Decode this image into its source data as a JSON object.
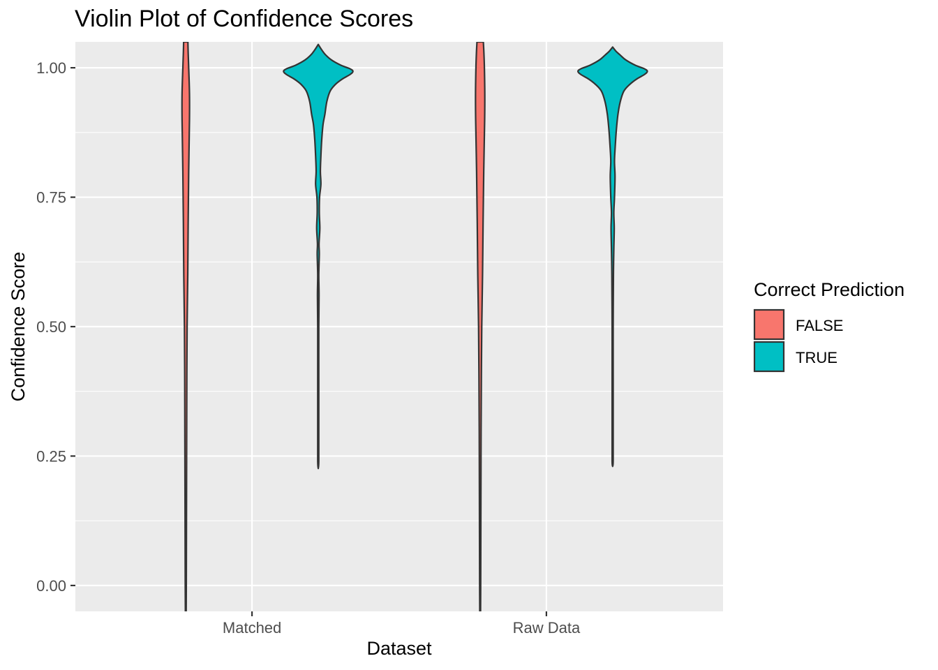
{
  "chart_data": {
    "type": "violin",
    "title": "Violin Plot of Confidence Scores",
    "xlabel": "Dataset",
    "ylabel": "Confidence Score",
    "categories": [
      "Matched",
      "Raw Data"
    ],
    "ylim": [
      -0.05,
      1.05
    ],
    "yticks": [
      0.0,
      0.25,
      0.5,
      0.75,
      1.0
    ],
    "ytick_labels": [
      "0.00",
      "0.25",
      "0.50",
      "0.75",
      "1.00"
    ],
    "grid": true,
    "legend": {
      "title": "Correct Prediction",
      "placement": "right",
      "entries": [
        {
          "label": "FALSE",
          "color": "#F8766D"
        },
        {
          "label": "TRUE",
          "color": "#00BFC4"
        }
      ]
    },
    "series": [
      {
        "name": "FALSE",
        "color": "#F8766D",
        "violins": [
          {
            "category": "Matched",
            "y_range": [
              -0.05,
              1.05
            ],
            "profile": [
              [
                -0.05,
                0.003
              ],
              [
                0.0,
                0.004
              ],
              [
                0.1,
                0.005
              ],
              [
                0.2,
                0.006
              ],
              [
                0.3,
                0.007
              ],
              [
                0.4,
                0.008
              ],
              [
                0.5,
                0.01
              ],
              [
                0.6,
                0.015
              ],
              [
                0.7,
                0.018
              ],
              [
                0.8,
                0.022
              ],
              [
                0.9,
                0.028
              ],
              [
                0.95,
                0.028
              ],
              [
                1.0,
                0.022
              ],
              [
                1.03,
                0.018
              ],
              [
                1.05,
                0.016
              ]
            ]
          },
          {
            "category": "Raw Data",
            "y_range": [
              -0.05,
              1.05
            ],
            "profile": [
              [
                -0.05,
                0.003
              ],
              [
                0.0,
                0.004
              ],
              [
                0.1,
                0.005
              ],
              [
                0.2,
                0.006
              ],
              [
                0.3,
                0.007
              ],
              [
                0.4,
                0.009
              ],
              [
                0.5,
                0.012
              ],
              [
                0.6,
                0.018
              ],
              [
                0.7,
                0.022
              ],
              [
                0.8,
                0.027
              ],
              [
                0.9,
                0.034
              ],
              [
                0.95,
                0.035
              ],
              [
                1.0,
                0.032
              ],
              [
                1.03,
                0.028
              ],
              [
                1.05,
                0.024
              ]
            ]
          }
        ]
      },
      {
        "name": "TRUE",
        "color": "#00BFC4",
        "violins": [
          {
            "category": "Matched",
            "y_range": [
              0.226,
              1.045
            ],
            "profile": [
              [
                0.226,
                0.0
              ],
              [
                0.24,
                0.004
              ],
              [
                0.3,
                0.004
              ],
              [
                0.4,
                0.004
              ],
              [
                0.5,
                0.004
              ],
              [
                0.56,
                0.006
              ],
              [
                0.6,
                0.004
              ],
              [
                0.64,
                0.008
              ],
              [
                0.66,
                0.006
              ],
              [
                0.69,
                0.012
              ],
              [
                0.72,
                0.008
              ],
              [
                0.75,
                0.01
              ],
              [
                0.775,
                0.02
              ],
              [
                0.8,
                0.016
              ],
              [
                0.83,
                0.02
              ],
              [
                0.86,
                0.026
              ],
              [
                0.89,
                0.036
              ],
              [
                0.91,
                0.05
              ],
              [
                0.935,
                0.065
              ],
              [
                0.955,
                0.09
              ],
              [
                0.968,
                0.13
              ],
              [
                0.978,
                0.18
              ],
              [
                0.987,
                0.24
              ],
              [
                0.993,
                0.262
              ],
              [
                0.998,
                0.24
              ],
              [
                1.005,
                0.17
              ],
              [
                1.015,
                0.1
              ],
              [
                1.025,
                0.055
              ],
              [
                1.035,
                0.025
              ],
              [
                1.045,
                0.0
              ]
            ]
          },
          {
            "category": "Raw Data",
            "y_range": [
              0.23,
              1.04
            ],
            "profile": [
              [
                0.23,
                0.0
              ],
              [
                0.24,
                0.004
              ],
              [
                0.3,
                0.004
              ],
              [
                0.4,
                0.004
              ],
              [
                0.5,
                0.004
              ],
              [
                0.6,
                0.006
              ],
              [
                0.65,
                0.009
              ],
              [
                0.69,
                0.012
              ],
              [
                0.72,
                0.009
              ],
              [
                0.75,
                0.014
              ],
              [
                0.79,
                0.018
              ],
              [
                0.82,
                0.014
              ],
              [
                0.85,
                0.02
              ],
              [
                0.88,
                0.028
              ],
              [
                0.91,
                0.04
              ],
              [
                0.935,
                0.058
              ],
              [
                0.955,
                0.085
              ],
              [
                0.968,
                0.13
              ],
              [
                0.978,
                0.18
              ],
              [
                0.987,
                0.24
              ],
              [
                0.993,
                0.262
              ],
              [
                0.998,
                0.24
              ],
              [
                1.005,
                0.17
              ],
              [
                1.015,
                0.1
              ],
              [
                1.025,
                0.055
              ],
              [
                1.032,
                0.025
              ],
              [
                1.04,
                0.0
              ]
            ]
          }
        ]
      }
    ]
  }
}
